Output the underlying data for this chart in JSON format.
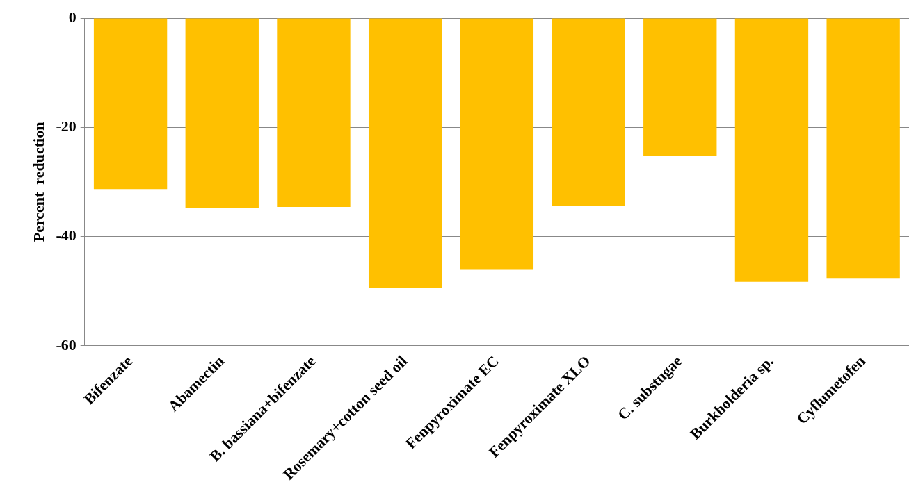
{
  "chart_data": {
    "type": "bar",
    "ylabel": "Percent  reduction",
    "categories": [
      "Bifenzate",
      "Abamectin",
      "B. bassiana+bifenzate",
      "Rosemary+cotton seed oil",
      "Fenpyroximate EC",
      "Fenpyroximate XLO",
      "C. substugae",
      "Burkholderia sp.",
      "Cyflumetofen"
    ],
    "values": [
      -31.3,
      -34.7,
      -34.6,
      -49.4,
      -46.1,
      -34.4,
      -25.3,
      -48.3,
      -47.6
    ],
    "color": "#ffc000",
    "ylim": [
      -60,
      0
    ],
    "yticks": [
      -60,
      -40,
      -20,
      0
    ],
    "grid": "y",
    "legend": false
  }
}
